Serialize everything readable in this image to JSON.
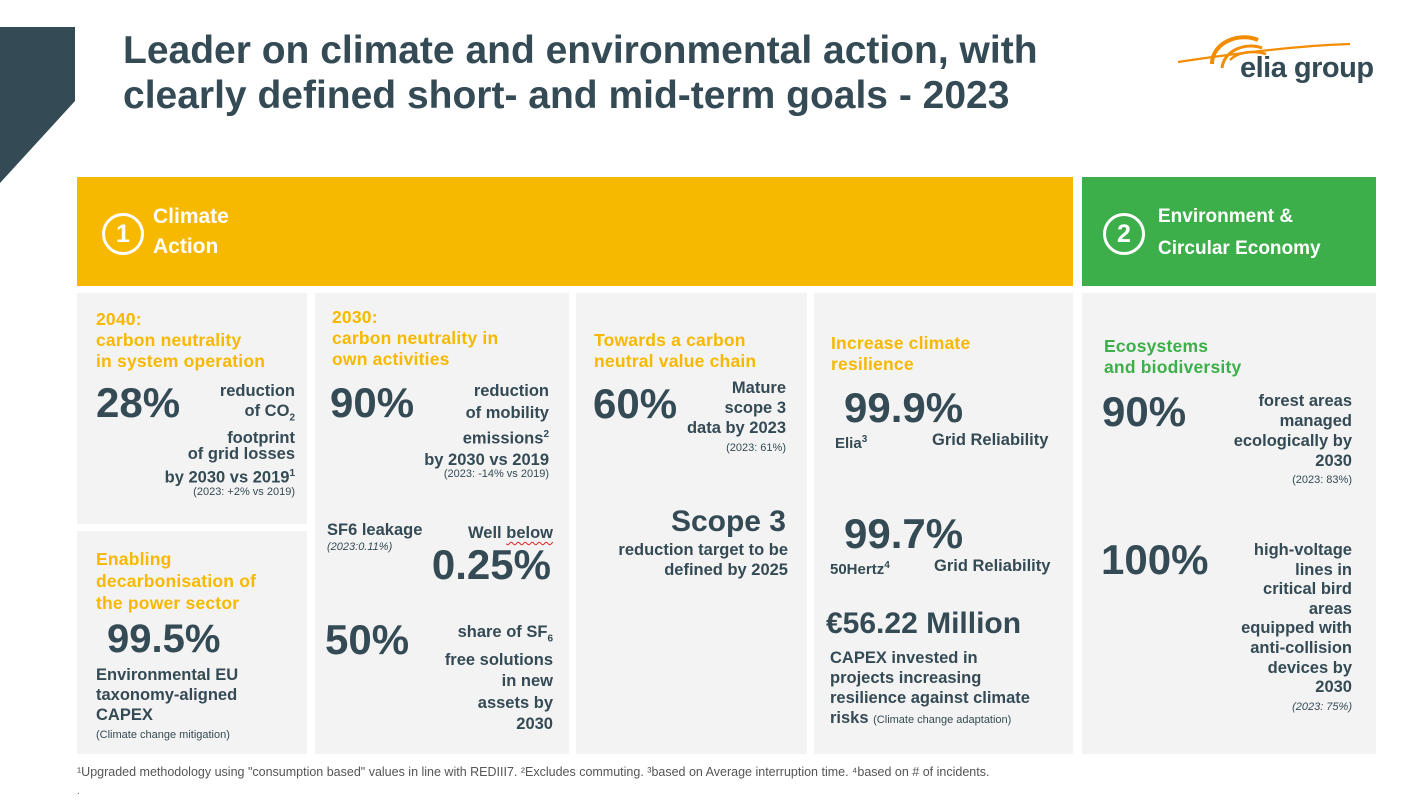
{
  "title": "Leader on climate and environmental action, with clearly defined short- and mid-term goals - 2023",
  "logo": {
    "text": "elia group",
    "brand_color": "#f28c00"
  },
  "colors": {
    "climate": "#f7b800",
    "environment": "#3daf4a",
    "dark": "#344a54",
    "panel": "#f3f3f3"
  },
  "climate_bar": {
    "number": "1",
    "line1": "Climate",
    "line2": "Action"
  },
  "env_bar": {
    "number": "2",
    "line1": "Environment &",
    "line2": "Circular Economy"
  },
  "p2040": {
    "head1": "2040:",
    "head2": "carbon neutrality",
    "head3": "in system operation",
    "big": "28%",
    "t1": "reduction",
    "t2a": "of CO",
    "t2sub": "2",
    "t3": "footprint",
    "t4": "of grid losses",
    "t5a": "by 2030 vs 2019",
    "t5sup": "1",
    "note": "(2023: +2% vs 2019)"
  },
  "pdecarb": {
    "head1": "Enabling",
    "head2": "decarbonisation of",
    "head3": "the power sector",
    "big": "99.5%",
    "t1": "Environmental EU",
    "t2": "taxonomy-aligned",
    "t3": "CAPEX",
    "note": "(Climate change mitigation)"
  },
  "p2030": {
    "head1": "2030:",
    "head2": "carbon neutrality in",
    "head3": "own activities",
    "big": "90%",
    "t1": "reduction",
    "t2": "of mobility",
    "t3a": "emissions",
    "t3sup": "2",
    "t4": "by 2030 vs 2019",
    "note": "(2023: -14% vs 2019)",
    "sf6_label": "SF6 leakage",
    "sf6_note": "(2023:0.11%)",
    "well_a": "Well ",
    "well_b": "below",
    "sf6_big": "0.25%",
    "big2": "50%",
    "s1a": "share of SF",
    "s1sub": "6",
    "s2": "free solutions",
    "s3": "in new",
    "s4": "assets by",
    "s5": "2030"
  },
  "pchain": {
    "head1": "Towards a carbon",
    "head2": "neutral value chain",
    "big": "60%",
    "t1": "Mature",
    "t2": "scope 3",
    "t3": "data by 2023",
    "note": "(2023: 61%)",
    "scope": "Scope 3",
    "s1": "reduction target to be",
    "s2": "defined by 2025"
  },
  "presil": {
    "head1": "Increase climate",
    "head2": "resilience",
    "big1": "99.9%",
    "elia_a": "Elia",
    "elia_sup": "3",
    "grid1": "Grid Reliability",
    "big2": "99.7%",
    "hz_a": "50Hertz",
    "hz_sup": "4",
    "grid2": "Grid Reliability",
    "money": "€56.22 Million",
    "c1": "CAPEX invested in",
    "c2": "projects increasing",
    "c3": "resilience against climate",
    "c4": "risks",
    "c4note": "(Climate change adaptation)"
  },
  "peco": {
    "head1": "Ecosystems",
    "head2": "and biodiversity",
    "big1": "90%",
    "f1": "forest areas",
    "f2": "managed",
    "f3": "ecologically by",
    "f4": "2030",
    "note1": "(2023: 83%)",
    "big2": "100%",
    "h1": "high-voltage",
    "h2": "lines in",
    "h3": "critical bird",
    "h4": "areas",
    "h5": "equipped with",
    "h6": "anti-collision",
    "h7": "devices by",
    "h8": "2030",
    "note2": "(2023: 75%)"
  },
  "footnote": "¹Upgraded methodology using \"consumption based\" values in line with REDIII7. ²Excludes commuting.  ³based on Average interruption time.  ⁴based on # of incidents.",
  "footnote_dot": "."
}
